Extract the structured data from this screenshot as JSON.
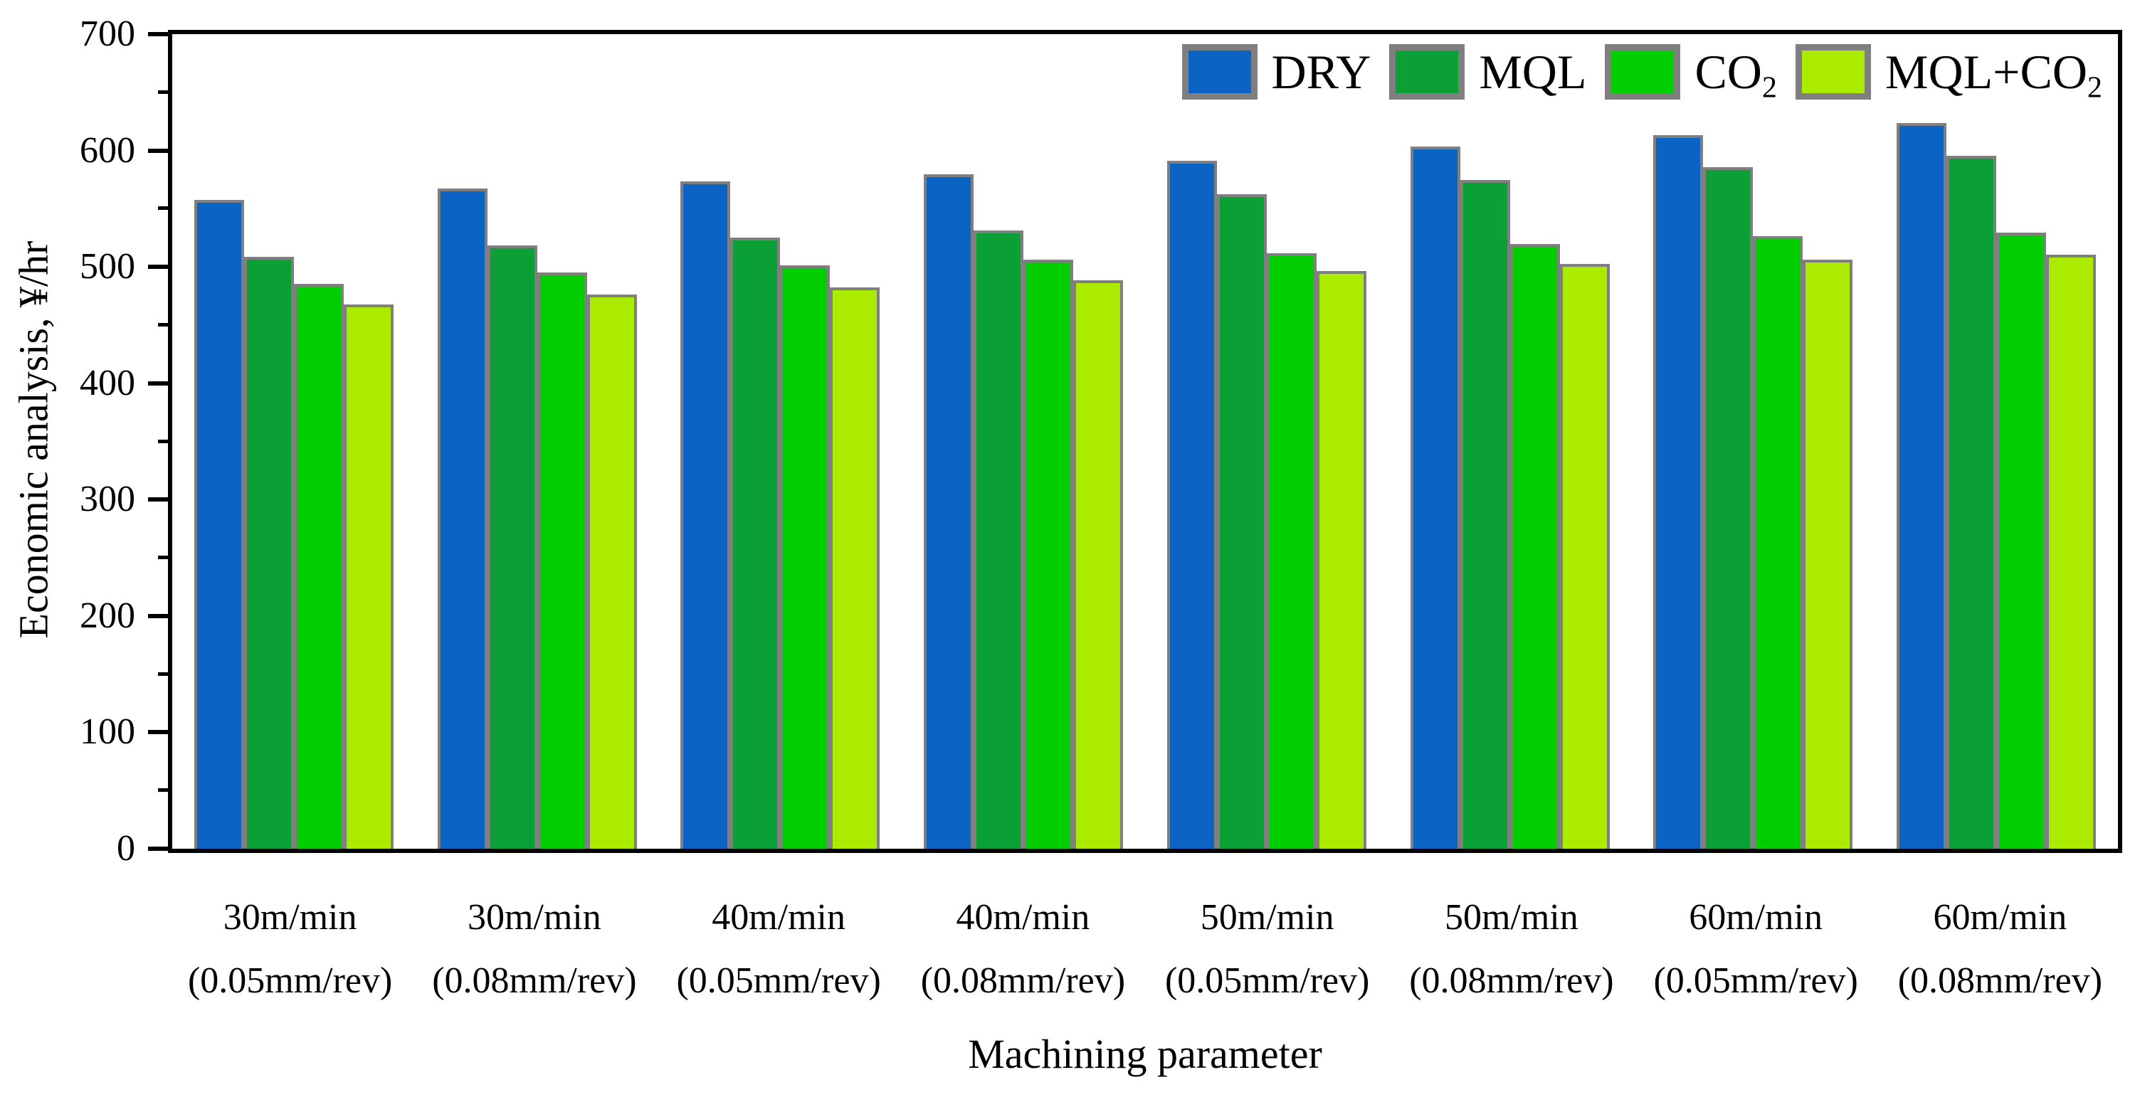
{
  "axes": {
    "y_title": "Economic analysis, ¥/hr",
    "x_title": "Machining parameter"
  },
  "chart_data": {
    "type": "bar",
    "title": "",
    "xlabel": "Machining parameter",
    "ylabel": "Economic analysis, ¥/hr",
    "ylim": [
      0,
      700
    ],
    "y_major_ticks": [
      0,
      100,
      200,
      300,
      400,
      500,
      600,
      700
    ],
    "y_minor_tick_step": 50,
    "grid": false,
    "legend_position": "top-right-inside",
    "frame_color": "#000000",
    "bar_border_color": "#7F7F7F",
    "categories": [
      {
        "line1": "30m/min",
        "line2": "(0.05mm/rev)"
      },
      {
        "line1": "30m/min",
        "line2": "(0.08mm/rev)"
      },
      {
        "line1": "40m/min",
        "line2": "(0.05mm/rev)"
      },
      {
        "line1": "40m/min",
        "line2": "(0.08mm/rev)"
      },
      {
        "line1": "50m/min",
        "line2": "(0.05mm/rev)"
      },
      {
        "line1": "50m/min",
        "line2": "(0.08mm/rev)"
      },
      {
        "line1": "60m/min",
        "line2": "(0.05mm/rev)"
      },
      {
        "line1": "60m/min",
        "line2": "(0.08mm/rev)"
      }
    ],
    "series": [
      {
        "name": "DRY",
        "sub": "",
        "color": "#0B63C4",
        "values": [
          555,
          565,
          571,
          577,
          589,
          601,
          611,
          621
        ]
      },
      {
        "name": "MQL",
        "sub": "",
        "color": "#0AA036",
        "values": [
          506,
          516,
          523,
          529,
          560,
          572,
          583,
          593
        ]
      },
      {
        "name": "CO",
        "sub": "2",
        "color": "#00CE00",
        "values": [
          483,
          493,
          499,
          504,
          509,
          517,
          524,
          527
        ]
      },
      {
        "name": "MQL+CO",
        "sub": "2",
        "color": "#ABEB00",
        "values": [
          465,
          474,
          480,
          486,
          494,
          500,
          504,
          508
        ]
      }
    ]
  }
}
